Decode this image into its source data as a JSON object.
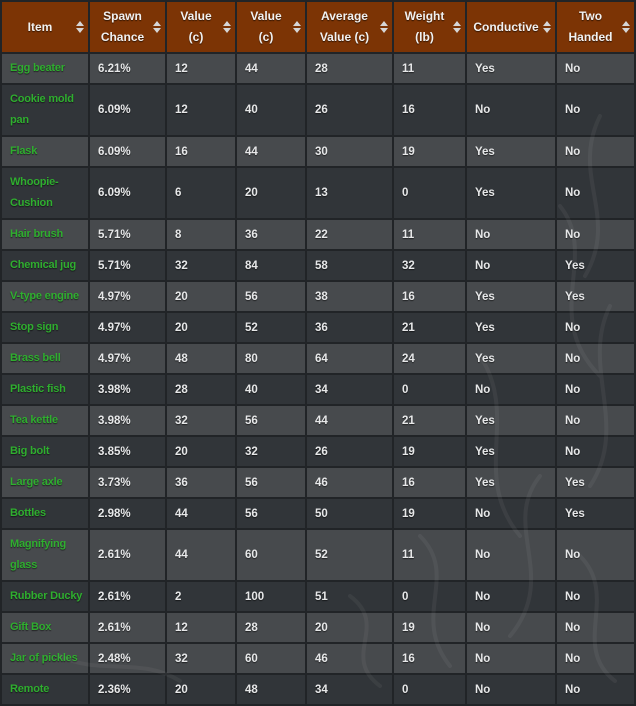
{
  "table": {
    "columns": [
      {
        "label": "Item",
        "sort_icon": "sort-arrows"
      },
      {
        "label": "Spawn\nChance",
        "sort_icon": "sort-arrows"
      },
      {
        "label": "Value\n(c)",
        "sort_icon": "sort-arrows"
      },
      {
        "label": "Value\n(c)",
        "sort_icon": "sort-arrows"
      },
      {
        "label": "Average\nValue (c)",
        "sort_icon": "sort-arrows"
      },
      {
        "label": "Weight\n(lb)",
        "sort_icon": "sort-arrows"
      },
      {
        "label": "Conductive",
        "sort_icon": "sort-arrows"
      },
      {
        "label": "Two\nHanded",
        "sort_icon": "sort-arrows"
      }
    ],
    "rows": [
      {
        "item": "Egg beater",
        "shade": "light",
        "cells": [
          "6.21%",
          "12",
          "44",
          "28",
          "11",
          "Yes",
          "No"
        ]
      },
      {
        "item": "Cookie mold\npan",
        "shade": "dark",
        "cells": [
          "6.09%",
          "12",
          "40",
          "26",
          "16",
          "No",
          "No"
        ]
      },
      {
        "item": "Flask",
        "shade": "light",
        "cells": [
          "6.09%",
          "16",
          "44",
          "30",
          "19",
          "Yes",
          "No"
        ]
      },
      {
        "item": "Whoopie-\nCushion",
        "shade": "dark",
        "cells": [
          "6.09%",
          "6",
          "20",
          "13",
          "0",
          "Yes",
          "No"
        ]
      },
      {
        "item": "Hair brush",
        "shade": "light",
        "cells": [
          "5.71%",
          "8",
          "36",
          "22",
          "11",
          "No",
          "No"
        ]
      },
      {
        "item": "Chemical jug",
        "shade": "dark",
        "cells": [
          "5.71%",
          "32",
          "84",
          "58",
          "32",
          "No",
          "Yes"
        ]
      },
      {
        "item": "V-type engine",
        "shade": "light",
        "cells": [
          "4.97%",
          "20",
          "56",
          "38",
          "16",
          "Yes",
          "Yes"
        ]
      },
      {
        "item": "Stop sign",
        "shade": "dark",
        "cells": [
          "4.97%",
          "20",
          "52",
          "36",
          "21",
          "Yes",
          "No"
        ]
      },
      {
        "item": "Brass bell",
        "shade": "light",
        "cells": [
          "4.97%",
          "48",
          "80",
          "64",
          "24",
          "Yes",
          "No"
        ]
      },
      {
        "item": "Plastic fish",
        "shade": "dark",
        "cells": [
          "3.98%",
          "28",
          "40",
          "34",
          "0",
          "No",
          "No"
        ]
      },
      {
        "item": "Tea kettle",
        "shade": "light",
        "cells": [
          "3.98%",
          "32",
          "56",
          "44",
          "21",
          "Yes",
          "No"
        ]
      },
      {
        "item": "Big bolt",
        "shade": "dark",
        "cells": [
          "3.85%",
          "20",
          "32",
          "26",
          "19",
          "Yes",
          "No"
        ]
      },
      {
        "item": "Large axle",
        "shade": "light",
        "cells": [
          "3.73%",
          "36",
          "56",
          "46",
          "16",
          "Yes",
          "Yes"
        ]
      },
      {
        "item": "Bottles",
        "shade": "dark",
        "cells": [
          "2.98%",
          "44",
          "56",
          "50",
          "19",
          "No",
          "Yes"
        ]
      },
      {
        "item": "Magnifying\nglass",
        "shade": "light",
        "cells": [
          "2.61%",
          "44",
          "60",
          "52",
          "11",
          "No",
          "No"
        ]
      },
      {
        "item": "Rubber Ducky",
        "shade": "dark",
        "cells": [
          "2.61%",
          "2",
          "100",
          "51",
          "0",
          "No",
          "No"
        ]
      },
      {
        "item": "Gift Box",
        "shade": "light",
        "cells": [
          "2.61%",
          "12",
          "28",
          "20",
          "19",
          "No",
          "No"
        ]
      },
      {
        "item": "Jar of pickles",
        "shade": "light",
        "cells": [
          "2.48%",
          "32",
          "60",
          "46",
          "16",
          "No",
          "No"
        ]
      },
      {
        "item": "Remote",
        "shade": "dark",
        "cells": [
          "2.36%",
          "20",
          "48",
          "34",
          "0",
          "No",
          "No"
        ]
      }
    ]
  },
  "colors": {
    "header_bg": "#7c3405",
    "header_text": "#f1f1f1",
    "row_light": "#474a4d",
    "row_dark": "#313539",
    "border": "#212427",
    "item_link": "#2fae2f",
    "cell_text": "#e7e8e9"
  }
}
